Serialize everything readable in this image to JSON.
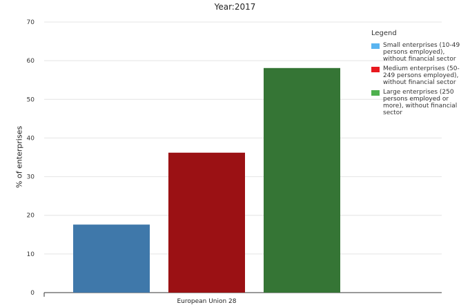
{
  "chart_data": {
    "type": "bar",
    "title": "Year:2017",
    "categories": [
      "European Union 28"
    ],
    "ylabel": "% of enterprises",
    "xlabel": "",
    "ylim": [
      0,
      70
    ],
    "yticks": [
      0,
      10,
      20,
      30,
      40,
      50,
      60,
      70
    ],
    "grid": true,
    "legend_title": "Legend",
    "legend_position": "top-right",
    "series": [
      {
        "name": "Small enterprises (10-49 persons employed), without financial sector",
        "values": [
          17.6
        ],
        "color": "#3f78aa",
        "legend_color": "#5ab4f0"
      },
      {
        "name": "Medium enterprises (50-249 persons employed), without financial sector",
        "values": [
          36.2
        ],
        "color": "#9b1114",
        "legend_color": "#e8191f"
      },
      {
        "name": "Large enterprises (250 persons employed or more), without financial sector",
        "values": [
          58.1
        ],
        "color": "#357535",
        "legend_color": "#4eb04e"
      }
    ]
  }
}
